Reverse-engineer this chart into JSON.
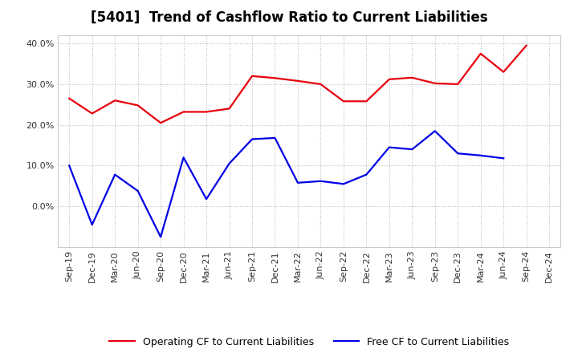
{
  "title": "[5401]  Trend of Cashflow Ratio to Current Liabilities",
  "x_labels": [
    "Sep-19",
    "Dec-19",
    "Mar-20",
    "Jun-20",
    "Sep-20",
    "Dec-20",
    "Mar-21",
    "Jun-21",
    "Sep-21",
    "Dec-21",
    "Mar-22",
    "Jun-22",
    "Sep-22",
    "Dec-22",
    "Mar-23",
    "Jun-23",
    "Sep-23",
    "Dec-23",
    "Mar-24",
    "Jun-24",
    "Sep-24",
    "Dec-24"
  ],
  "operating_cf": [
    0.265,
    0.228,
    0.26,
    0.248,
    0.205,
    0.232,
    0.232,
    0.24,
    0.32,
    0.315,
    0.308,
    0.3,
    0.258,
    0.258,
    0.312,
    0.316,
    0.302,
    0.3,
    0.375,
    0.33,
    0.395,
    null
  ],
  "free_cf": [
    0.1,
    -0.045,
    0.078,
    0.038,
    -0.075,
    0.12,
    0.018,
    0.105,
    0.165,
    0.168,
    0.058,
    0.062,
    0.055,
    0.078,
    0.145,
    0.14,
    0.185,
    0.13,
    0.125,
    0.118,
    null,
    null
  ],
  "operating_color": "#e8000d",
  "free_color": "#0000e8",
  "ylim": [
    -0.1,
    0.42
  ],
  "yticks": [
    0.0,
    0.1,
    0.2,
    0.3,
    0.4
  ],
  "ytick_labels": [
    "0.0%",
    "10.0%",
    "20.0%",
    "30.0%",
    "40.0%"
  ],
  "background_color": "#ffffff",
  "plot_bg_color": "#ffffff",
  "grid_color": "#bbbbbb",
  "legend_op": "Operating CF to Current Liabilities",
  "legend_free": "Free CF to Current Liabilities",
  "title_fontsize": 12,
  "axis_fontsize": 8,
  "legend_fontsize": 9
}
